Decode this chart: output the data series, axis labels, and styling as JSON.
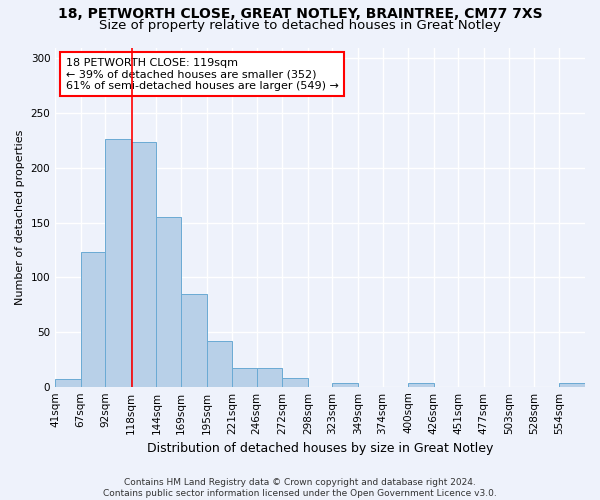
{
  "title1": "18, PETWORTH CLOSE, GREAT NOTLEY, BRAINTREE, CM77 7XS",
  "title2": "Size of property relative to detached houses in Great Notley",
  "xlabel": "Distribution of detached houses by size in Great Notley",
  "ylabel": "Number of detached properties",
  "bin_edges": [
    41,
    67,
    92,
    118,
    144,
    169,
    195,
    221,
    246,
    272,
    298,
    323,
    349,
    374,
    400,
    426,
    451,
    477,
    503,
    528,
    554,
    580
  ],
  "bar_heights": [
    7,
    123,
    226,
    224,
    155,
    85,
    42,
    17,
    17,
    8,
    0,
    3,
    0,
    0,
    3,
    0,
    0,
    0,
    0,
    0,
    3
  ],
  "bar_color": "#b8d0e8",
  "bar_edge_color": "#6aaad4",
  "vline_x": 119,
  "vline_color": "red",
  "annotation_line1": "18 PETWORTH CLOSE: 119sqm",
  "annotation_line2": "← 39% of detached houses are smaller (352)",
  "annotation_line3": "61% of semi-detached houses are larger (549) →",
  "annotation_box_color": "white",
  "annotation_box_edge": "red",
  "ylim": [
    0,
    310
  ],
  "yticks": [
    0,
    50,
    100,
    150,
    200,
    250,
    300
  ],
  "background_color": "#eef2fb",
  "grid_color": "white",
  "footer_line1": "Contains HM Land Registry data © Crown copyright and database right 2024.",
  "footer_line2": "Contains public sector information licensed under the Open Government Licence v3.0.",
  "title1_fontsize": 10,
  "title2_fontsize": 9.5,
  "xlabel_fontsize": 9,
  "ylabel_fontsize": 8,
  "tick_fontsize": 7.5,
  "annotation_fontsize": 8,
  "footer_fontsize": 6.5
}
